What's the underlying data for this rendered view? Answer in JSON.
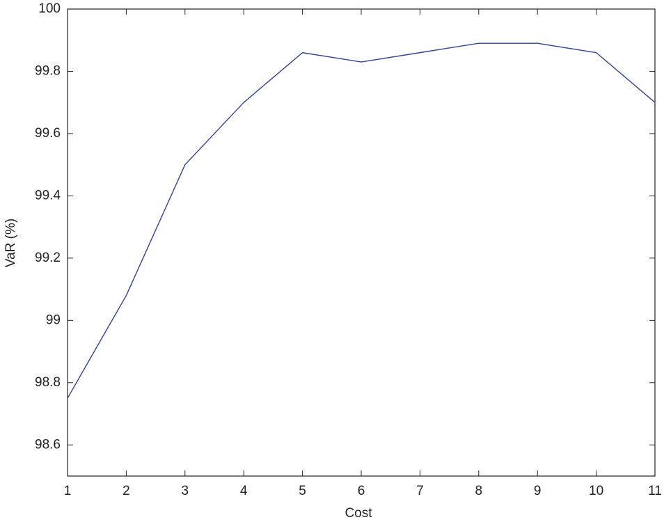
{
  "chart_data": {
    "type": "line",
    "x_label": "Cost",
    "y_label": "VaR (%)",
    "x": [
      1,
      2,
      3,
      4,
      5,
      6,
      7,
      8,
      9,
      10,
      11
    ],
    "series": [
      {
        "color": "#2f3f9f",
        "values": [
          98.75,
          99.08,
          99.5,
          99.7,
          99.86,
          99.83,
          99.86,
          99.89,
          99.89,
          99.86,
          99.7
        ]
      }
    ],
    "xlim": [
      1,
      11
    ],
    "xticks": [
      1,
      2,
      3,
      4,
      5,
      6,
      7,
      8,
      9,
      10,
      11
    ],
    "ylim": [
      98.5,
      100
    ],
    "yticks": [
      98.6,
      98.8,
      99,
      99.2,
      99.4,
      99.6,
      99.8,
      100
    ],
    "grid": false
  }
}
